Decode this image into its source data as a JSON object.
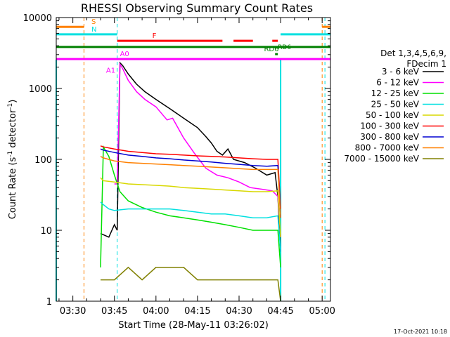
{
  "chart_data": {
    "type": "line",
    "title": "RHESSI Observing Summary Count Rates",
    "xlabel": "Start Time (28-May-11 03:26:02)",
    "ylabel": "Count Rate (s",
    "ylabel_sup": "-1",
    "ylabel_tail": " detector",
    "ylabel_sup2": "-1",
    "ylabel_close": ")",
    "x_scale": "time",
    "y_scale": "log",
    "xlim": [
      "03:24",
      "05:03"
    ],
    "ylim": [
      1,
      10000
    ],
    "x_ticks": [
      "03:30",
      "03:45",
      "04:00",
      "04:15",
      "04:30",
      "04:45",
      "05:00"
    ],
    "y_ticks": [
      "1",
      "10",
      "100",
      "1000",
      "10000"
    ],
    "legend": {
      "placement": "right",
      "header": [
        "Det 1,3,4,5,6,9,",
        "FDecim 1"
      ],
      "entries": [
        {
          "label": "3 - 6 keV",
          "color": "#000000"
        },
        {
          "label": "6 - 12 keV",
          "color": "#ff00ff"
        },
        {
          "label": "12 - 25 keV",
          "color": "#00e000"
        },
        {
          "label": "25 - 50 keV",
          "color": "#00e0e0"
        },
        {
          "label": "50 - 100 keV",
          "color": "#d8d800"
        },
        {
          "label": "100 - 300 keV",
          "color": "#ff0000"
        },
        {
          "label": "300 - 800 keV",
          "color": "#0000d0"
        },
        {
          "label": "800 - 7000 keV",
          "color": "#ff8000"
        },
        {
          "label": "7000 - 15000 keV",
          "color": "#808000"
        }
      ]
    },
    "flags": [
      {
        "label": "S",
        "color": "#ff8000",
        "segments": [
          [
            "03:24",
            "03:34"
          ],
          [
            "05:00",
            "05:03"
          ]
        ],
        "y": 7400
      },
      {
        "label": "N",
        "color": "#00e0e0",
        "segments": [
          [
            "03:24",
            "03:46"
          ],
          [
            "04:45",
            "05:03"
          ]
        ],
        "y": 5800
      },
      {
        "label": "F",
        "color": "#ff0000",
        "segments": [
          [
            "03:46",
            "04:24"
          ],
          [
            "04:28",
            "04:35"
          ],
          [
            "04:42",
            "04:44"
          ]
        ],
        "y": 4700
      },
      {
        "label": "RD6",
        "color": "#008000",
        "segments": [
          [
            "03:24",
            "05:03"
          ]
        ],
        "y": 3850
      },
      {
        "label": "RD6",
        "color": "#008000",
        "segments": [
          [
            "04:43",
            "04:44"
          ]
        ],
        "y": 3050
      },
      {
        "label": "A0",
        "color": "#ff00ff",
        "segments": [
          [
            "03:24",
            "05:03"
          ]
        ],
        "y": 2600
      }
    ],
    "markers": {
      "orange_dashed": [
        "03:34",
        "05:00"
      ],
      "cyan_dashed": [
        "03:46",
        "05:01"
      ],
      "cyan_solid": [
        "03:24",
        "04:45"
      ]
    },
    "series": [
      {
        "name": "3 - 6 keV",
        "color": "#000000",
        "x": [
          "03:40",
          "03:43",
          "03:45",
          "03:46",
          "03:47",
          "03:48",
          "03:50",
          "03:53",
          "03:56",
          "04:00",
          "04:05",
          "04:10",
          "04:15",
          "04:18",
          "04:20",
          "04:22",
          "04:24",
          "04:26",
          "04:28",
          "04:32",
          "04:36",
          "04:40",
          "04:43",
          "04:44",
          "04:45"
        ],
        "y": [
          9,
          8,
          12,
          10,
          2300,
          2100,
          1600,
          1150,
          900,
          700,
          520,
          380,
          280,
          210,
          170,
          130,
          115,
          140,
          100,
          90,
          75,
          60,
          65,
          30,
          5
        ]
      },
      {
        "name": "6 - 12 keV",
        "color": "#ff00ff",
        "x": [
          "03:45",
          "03:46",
          "03:47",
          "03:48",
          "03:50",
          "03:53",
          "03:56",
          "04:00",
          "04:04",
          "04:06",
          "04:10",
          "04:14",
          "04:18",
          "04:22",
          "04:26",
          "04:30",
          "04:34",
          "04:38",
          "04:42",
          "04:44",
          "04:45"
        ],
        "y": [
          45,
          45,
          2200,
          1900,
          1300,
          900,
          700,
          550,
          360,
          380,
          200,
          120,
          75,
          60,
          55,
          48,
          40,
          38,
          36,
          30,
          8
        ]
      },
      {
        "name": "12 - 25 keV",
        "color": "#00e000",
        "x": [
          "03:40",
          "03:41",
          "03:43",
          "03:45",
          "03:47",
          "03:50",
          "03:55",
          "04:00",
          "04:05",
          "04:10",
          "04:15",
          "04:20",
          "04:25",
          "04:30",
          "04:35",
          "04:40",
          "04:44",
          "04:45"
        ],
        "y": [
          3,
          150,
          110,
          60,
          35,
          26,
          21,
          18,
          16,
          15,
          14,
          13,
          12,
          11,
          10,
          10,
          10,
          3
        ]
      },
      {
        "name": "25 - 50 keV",
        "color": "#00e0e0",
        "x": [
          "03:40",
          "03:41",
          "03:43",
          "03:45",
          "03:50",
          "03:55",
          "04:00",
          "04:05",
          "04:10",
          "04:15",
          "04:20",
          "04:25",
          "04:30",
          "04:35",
          "04:40",
          "04:44",
          "04:45"
        ],
        "y": [
          25,
          23,
          20,
          19,
          20,
          20,
          20,
          20,
          19,
          18,
          17,
          17,
          16,
          15,
          15,
          16,
          5
        ]
      },
      {
        "name": "50 - 100 keV",
        "color": "#d8d800",
        "x": [
          "03:40",
          "03:41",
          "03:45",
          "03:50",
          "03:55",
          "04:00",
          "04:05",
          "04:10",
          "04:15",
          "04:20",
          "04:25",
          "04:30",
          "04:35",
          "04:40",
          "04:44",
          "04:45"
        ],
        "y": [
          55,
          50,
          48,
          45,
          44,
          43,
          42,
          40,
          39,
          38,
          37,
          36,
          35,
          35,
          36,
          8
        ]
      },
      {
        "name": "100 - 300 keV",
        "color": "#ff0000",
        "x": [
          "03:40",
          "03:41",
          "03:45",
          "03:50",
          "03:55",
          "04:00",
          "04:05",
          "04:10",
          "04:15",
          "04:20",
          "04:25",
          "04:30",
          "04:35",
          "04:40",
          "04:44",
          "04:45"
        ],
        "y": [
          155,
          150,
          140,
          130,
          125,
          120,
          118,
          115,
          112,
          110,
          108,
          105,
          102,
          100,
          100,
          20
        ]
      },
      {
        "name": "300 - 800 keV",
        "color": "#0000d0",
        "x": [
          "03:40",
          "03:41",
          "03:45",
          "03:50",
          "03:55",
          "04:00",
          "04:05",
          "04:10",
          "04:15",
          "04:20",
          "04:25",
          "04:30",
          "04:35",
          "04:40",
          "04:44",
          "04:45"
        ],
        "y": [
          140,
          135,
          125,
          115,
          110,
          105,
          102,
          98,
          95,
          92,
          88,
          85,
          82,
          80,
          82,
          15
        ]
      },
      {
        "name": "800 - 7000 keV",
        "color": "#ff8000",
        "x": [
          "03:40",
          "03:41",
          "03:45",
          "03:50",
          "03:55",
          "04:00",
          "04:05",
          "04:10",
          "04:15",
          "04:20",
          "04:25",
          "04:30",
          "04:35",
          "04:40",
          "04:44",
          "04:45"
        ],
        "y": [
          110,
          105,
          95,
          90,
          88,
          86,
          84,
          82,
          80,
          78,
          76,
          74,
          72,
          72,
          72,
          15
        ]
      },
      {
        "name": "7000 - 15000 keV",
        "color": "#808000",
        "x": [
          "03:40",
          "03:45",
          "03:50",
          "03:55",
          "04:00",
          "04:05",
          "04:10",
          "04:15",
          "04:20",
          "04:25",
          "04:30",
          "04:35",
          "04:40",
          "04:44",
          "04:45"
        ],
        "y": [
          2,
          2,
          3,
          2,
          3,
          3,
          3,
          2,
          2,
          2,
          2,
          2,
          2,
          2,
          1
        ]
      }
    ]
  },
  "footer": {
    "timestamp": "17-Oct-2021 10:18"
  }
}
